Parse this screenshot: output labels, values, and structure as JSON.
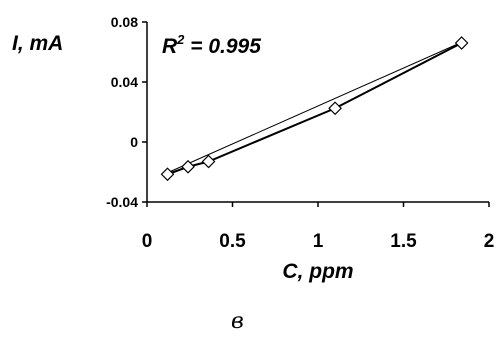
{
  "chart_data": {
    "type": "scatter",
    "xlabel": "C, ppm",
    "ylabel": "I, mA",
    "annotation": {
      "base": "R",
      "sup": "2",
      "rest": " = 0.995"
    },
    "caption": "в",
    "xlim": [
      0,
      2
    ],
    "ylim": [
      -0.04,
      0.08
    ],
    "x_ticks": [
      "0",
      "0.5",
      "1",
      "1.5",
      "2"
    ],
    "x_tick_values": [
      0,
      0.5,
      1,
      1.5,
      2
    ],
    "y_ticks": [
      "0.08",
      "0.04",
      "0",
      "-0.04"
    ],
    "y_tick_values": [
      0.08,
      0.04,
      0,
      -0.04
    ],
    "series": [
      {
        "marker": "diamond",
        "x": [
          0.12,
          0.24,
          0.36,
          1.1,
          1.84
        ],
        "y": [
          -0.0215,
          -0.0165,
          -0.013,
          0.0225,
          0.066
        ]
      }
    ],
    "fit_line": {
      "x": [
        0.12,
        1.84
      ],
      "y": [
        -0.0205,
        0.0665
      ]
    },
    "colors": {
      "axis": "#000000",
      "marker_fill": "#ffffff",
      "line": "#000000"
    },
    "grid": false,
    "legend": "none"
  }
}
